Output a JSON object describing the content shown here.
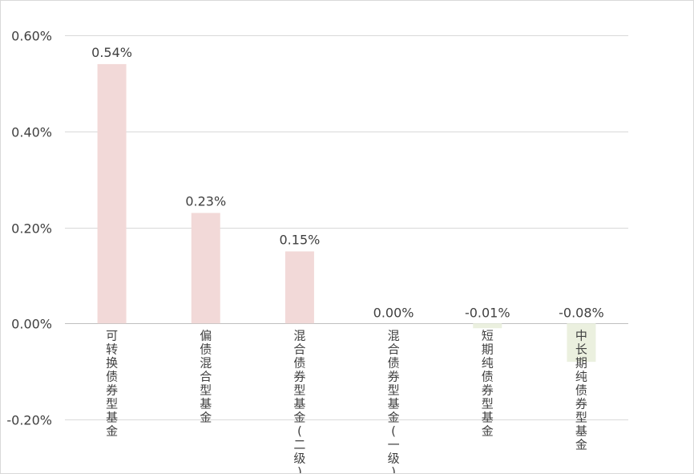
{
  "chart_data": {
    "type": "bar",
    "categories": [
      "可转换债券型基金",
      "偏债混合型基金",
      "混合债券型基金(二级)",
      "混合债券型基金(一级)",
      "短期纯债券型基金",
      "中长期纯债券型基金"
    ],
    "values": [
      0.54,
      0.23,
      0.15,
      0.0,
      -0.01,
      -0.08
    ],
    "data_labels": [
      "0.54%",
      "0.23%",
      "0.15%",
      "0.00%",
      "-0.01%",
      "-0.08%"
    ],
    "y_ticks": [
      0.6,
      0.4,
      0.2,
      0.0,
      -0.2
    ],
    "y_tick_labels": [
      "0.60%",
      "0.40%",
      "0.20%",
      "0.00%",
      "-0.20%"
    ],
    "ylim": [
      -0.2,
      0.6
    ],
    "grid": true,
    "legend": "none",
    "colors": {
      "positive": "#f2d9d8",
      "negative": "#ebf0df",
      "grid": "#d9d9d9",
      "text": "#404040"
    }
  }
}
